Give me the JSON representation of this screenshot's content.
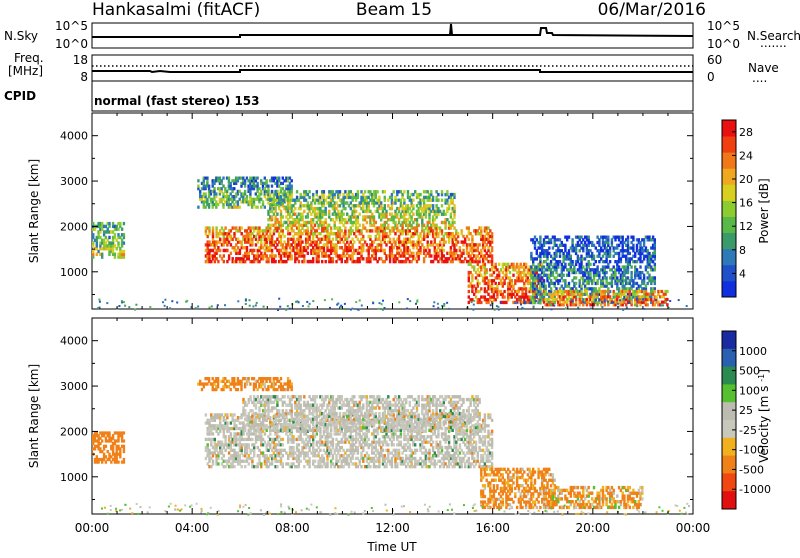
{
  "header": {
    "station": "Hankasalmi (fitACF)",
    "beam": "Beam 15",
    "date": "06/Mar/2016"
  },
  "strip_nsky": {
    "left_label": "N.Sky",
    "left_ticks": [
      "10^5",
      "10^0"
    ],
    "right_ticks": [
      "10^5",
      "10^0"
    ],
    "right_label": "N.Search",
    "right_label_dots": "......."
  },
  "strip_freq": {
    "left_label_line1": "Freq.",
    "left_label_line2": "[MHz]",
    "left_ticks": [
      "18",
      "8"
    ],
    "right_ticks": [
      "60",
      "0"
    ],
    "right_label": "Nave",
    "right_label_dots": "...."
  },
  "strip_cpid": {
    "left_label": "CPID",
    "text": "normal (fast stereo) 153"
  },
  "colors": {
    "power": [
      "#1030e0",
      "#2050c8",
      "#2e7ab8",
      "#3a9a6a",
      "#58b848",
      "#8ccc30",
      "#d8d020",
      "#f0a820",
      "#f07818",
      "#f04010",
      "#e81010"
    ],
    "velocity": [
      "#1a2aa0",
      "#2a60b0",
      "#2a8a50",
      "#56c030",
      "#bcbcb0",
      "#c8c8bc",
      "#f0b020",
      "#f08018",
      "#f04810",
      "#e01010"
    ]
  },
  "chart_data": [
    {
      "type": "heatmap",
      "title": "",
      "xlabel": "Time UT",
      "ylabel": "Slant Range [km]",
      "xlim": [
        "00:00",
        "24:00"
      ],
      "ylim": [
        180,
        4500
      ],
      "x_ticks": [
        "00:00",
        "04:00",
        "08:00",
        "12:00",
        "16:00",
        "20:00",
        "00:00"
      ],
      "y_ticks": [
        1000,
        2000,
        3000,
        4000
      ],
      "colorbar": {
        "label": "Power [dB]",
        "ticks": [
          4,
          8,
          12,
          16,
          20,
          24,
          28
        ],
        "range": [
          0,
          30
        ]
      },
      "regions": [
        {
          "t_start": 0.0,
          "t_end": 1.3,
          "range_low": 1300,
          "range_high": 2100,
          "power": 16
        },
        {
          "t_start": 4.2,
          "t_end": 8.0,
          "range_low": 2400,
          "range_high": 3100,
          "power": 14
        },
        {
          "t_start": 4.5,
          "t_end": 16.0,
          "range_low": 1200,
          "range_high": 2000,
          "power": 28
        },
        {
          "t_start": 7.0,
          "t_end": 14.5,
          "range_low": 2000,
          "range_high": 2800,
          "power": 18
        },
        {
          "t_start": 15.0,
          "t_end": 18.0,
          "range_low": 300,
          "range_high": 1200,
          "power": 28
        },
        {
          "t_start": 17.5,
          "t_end": 22.5,
          "range_low": 300,
          "range_high": 1800,
          "power": 10
        },
        {
          "t_start": 18.0,
          "t_end": 23.0,
          "range_low": 250,
          "range_high": 600,
          "power": 26
        }
      ]
    },
    {
      "type": "heatmap",
      "title": "",
      "xlabel": "Time UT",
      "ylabel": "Slant Range [km]",
      "xlim": [
        "00:00",
        "24:00"
      ],
      "ylim": [
        180,
        4500
      ],
      "x_ticks": [
        "00:00",
        "04:00",
        "08:00",
        "12:00",
        "16:00",
        "20:00",
        "00:00"
      ],
      "y_ticks": [
        1000,
        2000,
        3000,
        4000
      ],
      "colorbar": {
        "label": "Velocity [m s^-1]",
        "ticks": [
          1000,
          500,
          100,
          25,
          -25,
          -100,
          -500,
          -1000
        ]
      },
      "regions": [
        {
          "t_start": 0.0,
          "t_end": 1.3,
          "range_low": 1300,
          "range_high": 2000,
          "velocity": -300
        },
        {
          "t_start": 4.5,
          "t_end": 16.0,
          "range_low": 1200,
          "range_high": 2400,
          "velocity": 0
        },
        {
          "t_start": 6.0,
          "t_end": 15.5,
          "range_low": 2000,
          "range_high": 2800,
          "velocity": 0
        },
        {
          "t_start": 4.2,
          "t_end": 8.0,
          "range_low": 2900,
          "range_high": 3200,
          "velocity": -200
        },
        {
          "t_start": 15.5,
          "t_end": 18.5,
          "range_low": 300,
          "range_high": 1200,
          "velocity": -200
        },
        {
          "t_start": 18.0,
          "t_end": 22.0,
          "range_low": 300,
          "range_high": 800,
          "velocity": -150
        }
      ]
    }
  ]
}
